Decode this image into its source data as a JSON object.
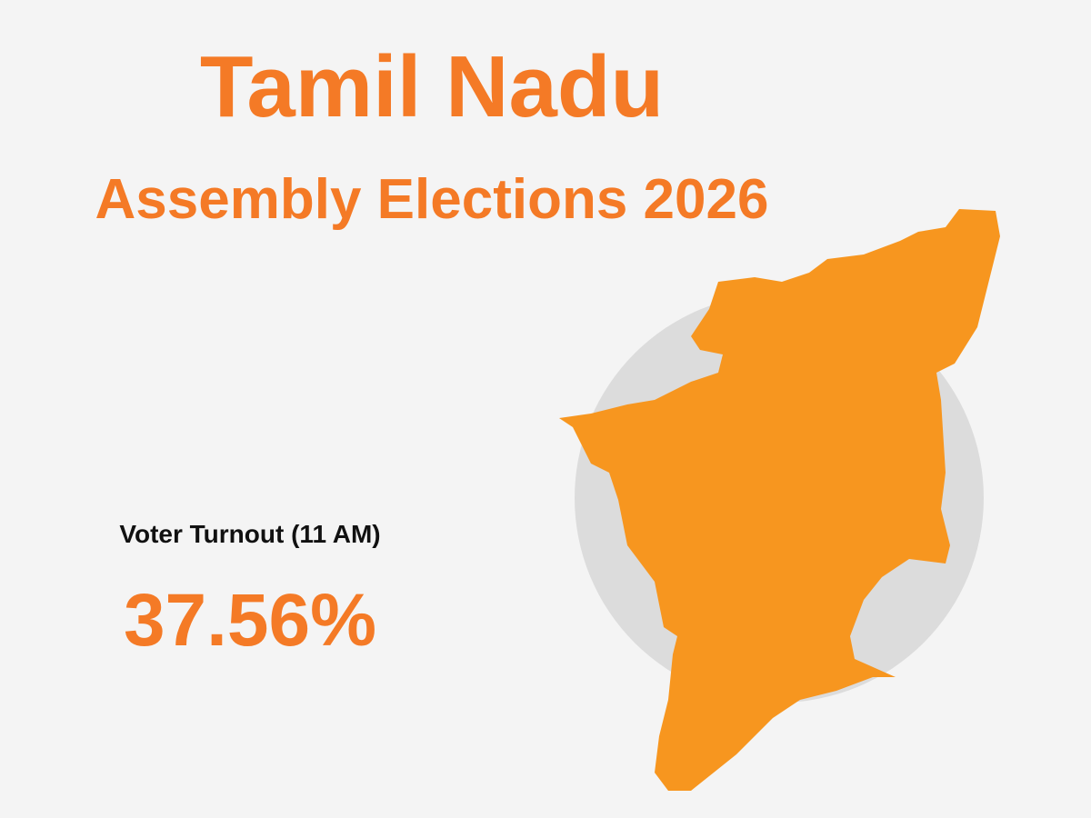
{
  "header": {
    "title": "Tamil Nadu",
    "subtitle": "Assembly Elections 2026"
  },
  "stat": {
    "label": "Voter Turnout (11 AM)",
    "value": "37.56%"
  }
}
